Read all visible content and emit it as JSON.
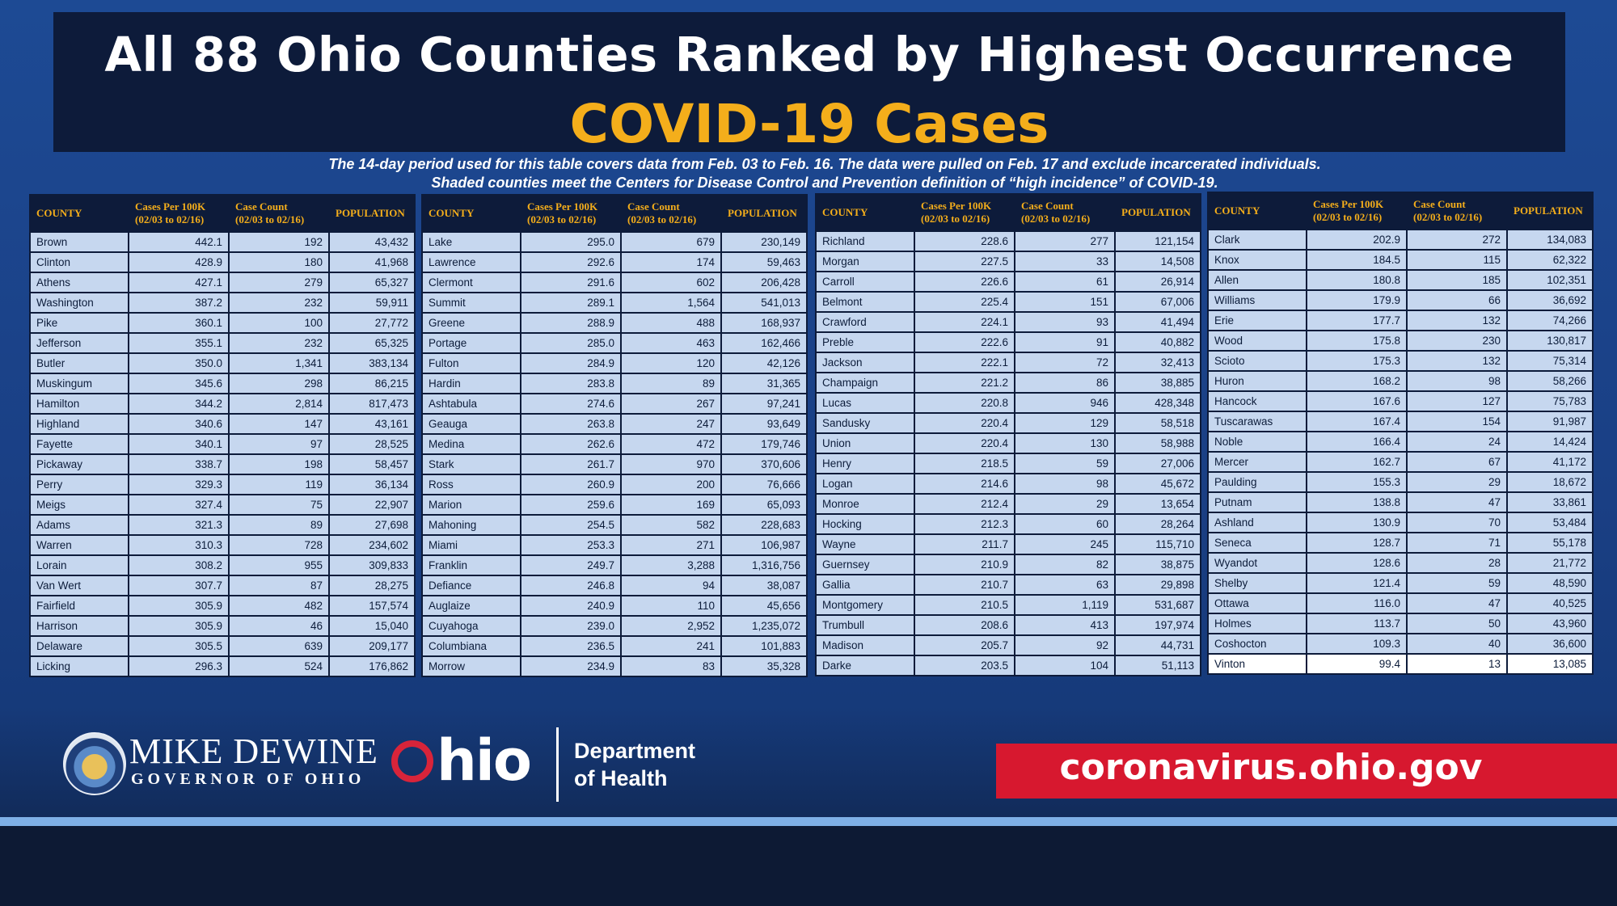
{
  "header": {
    "title": "All 88 Ohio Counties Ranked by Highest Occurrence",
    "subtitle": "COVID-19 Cases",
    "note_line1": "The 14-day period used for this table covers data from Feb. 03 to Feb. 16. The data were pulled on Feb. 17 and exclude incarcerated individuals.",
    "note_line2": "Shaded counties meet the Centers for Disease Control and Prevention definition of “high incidence” of COVID-19."
  },
  "columns": {
    "county": "COUNTY",
    "rate": "Cases Per 100K",
    "rate_sub": "(02/03 to 02/16)",
    "count": "Case Count",
    "count_sub": "(02/03 to 02/16)",
    "population": "POPULATION"
  },
  "tables": [
    [
      [
        "Brown",
        "442.1",
        "192",
        "43,432"
      ],
      [
        "Clinton",
        "428.9",
        "180",
        "41,968"
      ],
      [
        "Athens",
        "427.1",
        "279",
        "65,327"
      ],
      [
        "Washington",
        "387.2",
        "232",
        "59,911"
      ],
      [
        "Pike",
        "360.1",
        "100",
        "27,772"
      ],
      [
        "Jefferson",
        "355.1",
        "232",
        "65,325"
      ],
      [
        "Butler",
        "350.0",
        "1,341",
        "383,134"
      ],
      [
        "Muskingum",
        "345.6",
        "298",
        "86,215"
      ],
      [
        "Hamilton",
        "344.2",
        "2,814",
        "817,473"
      ],
      [
        "Highland",
        "340.6",
        "147",
        "43,161"
      ],
      [
        "Fayette",
        "340.1",
        "97",
        "28,525"
      ],
      [
        "Pickaway",
        "338.7",
        "198",
        "58,457"
      ],
      [
        "Perry",
        "329.3",
        "119",
        "36,134"
      ],
      [
        "Meigs",
        "327.4",
        "75",
        "22,907"
      ],
      [
        "Adams",
        "321.3",
        "89",
        "27,698"
      ],
      [
        "Warren",
        "310.3",
        "728",
        "234,602"
      ],
      [
        "Lorain",
        "308.2",
        "955",
        "309,833"
      ],
      [
        "Van Wert",
        "307.7",
        "87",
        "28,275"
      ],
      [
        "Fairfield",
        "305.9",
        "482",
        "157,574"
      ],
      [
        "Harrison",
        "305.9",
        "46",
        "15,040"
      ],
      [
        "Delaware",
        "305.5",
        "639",
        "209,177"
      ],
      [
        "Licking",
        "296.3",
        "524",
        "176,862"
      ]
    ],
    [
      [
        "Lake",
        "295.0",
        "679",
        "230,149"
      ],
      [
        "Lawrence",
        "292.6",
        "174",
        "59,463"
      ],
      [
        "Clermont",
        "291.6",
        "602",
        "206,428"
      ],
      [
        "Summit",
        "289.1",
        "1,564",
        "541,013"
      ],
      [
        "Greene",
        "288.9",
        "488",
        "168,937"
      ],
      [
        "Portage",
        "285.0",
        "463",
        "162,466"
      ],
      [
        "Fulton",
        "284.9",
        "120",
        "42,126"
      ],
      [
        "Hardin",
        "283.8",
        "89",
        "31,365"
      ],
      [
        "Ashtabula",
        "274.6",
        "267",
        "97,241"
      ],
      [
        "Geauga",
        "263.8",
        "247",
        "93,649"
      ],
      [
        "Medina",
        "262.6",
        "472",
        "179,746"
      ],
      [
        "Stark",
        "261.7",
        "970",
        "370,606"
      ],
      [
        "Ross",
        "260.9",
        "200",
        "76,666"
      ],
      [
        "Marion",
        "259.6",
        "169",
        "65,093"
      ],
      [
        "Mahoning",
        "254.5",
        "582",
        "228,683"
      ],
      [
        "Miami",
        "253.3",
        "271",
        "106,987"
      ],
      [
        "Franklin",
        "249.7",
        "3,288",
        "1,316,756"
      ],
      [
        "Defiance",
        "246.8",
        "94",
        "38,087"
      ],
      [
        "Auglaize",
        "240.9",
        "110",
        "45,656"
      ],
      [
        "Cuyahoga",
        "239.0",
        "2,952",
        "1,235,072"
      ],
      [
        "Columbiana",
        "236.5",
        "241",
        "101,883"
      ],
      [
        "Morrow",
        "234.9",
        "83",
        "35,328"
      ]
    ],
    [
      [
        "Richland",
        "228.6",
        "277",
        "121,154"
      ],
      [
        "Morgan",
        "227.5",
        "33",
        "14,508"
      ],
      [
        "Carroll",
        "226.6",
        "61",
        "26,914"
      ],
      [
        "Belmont",
        "225.4",
        "151",
        "67,006"
      ],
      [
        "Crawford",
        "224.1",
        "93",
        "41,494"
      ],
      [
        "Preble",
        "222.6",
        "91",
        "40,882"
      ],
      [
        "Jackson",
        "222.1",
        "72",
        "32,413"
      ],
      [
        "Champaign",
        "221.2",
        "86",
        "38,885"
      ],
      [
        "Lucas",
        "220.8",
        "946",
        "428,348"
      ],
      [
        "Sandusky",
        "220.4",
        "129",
        "58,518"
      ],
      [
        "Union",
        "220.4",
        "130",
        "58,988"
      ],
      [
        "Henry",
        "218.5",
        "59",
        "27,006"
      ],
      [
        "Logan",
        "214.6",
        "98",
        "45,672"
      ],
      [
        "Monroe",
        "212.4",
        "29",
        "13,654"
      ],
      [
        "Hocking",
        "212.3",
        "60",
        "28,264"
      ],
      [
        "Wayne",
        "211.7",
        "245",
        "115,710"
      ],
      [
        "Guernsey",
        "210.9",
        "82",
        "38,875"
      ],
      [
        "Gallia",
        "210.7",
        "63",
        "29,898"
      ],
      [
        "Montgomery",
        "210.5",
        "1,119",
        "531,687"
      ],
      [
        "Trumbull",
        "208.6",
        "413",
        "197,974"
      ],
      [
        "Madison",
        "205.7",
        "92",
        "44,731"
      ],
      [
        "Darke",
        "203.5",
        "104",
        "51,113"
      ]
    ],
    [
      [
        "Clark",
        "202.9",
        "272",
        "134,083"
      ],
      [
        "Knox",
        "184.5",
        "115",
        "62,322"
      ],
      [
        "Allen",
        "180.8",
        "185",
        "102,351"
      ],
      [
        "Williams",
        "179.9",
        "66",
        "36,692"
      ],
      [
        "Erie",
        "177.7",
        "132",
        "74,266"
      ],
      [
        "Wood",
        "175.8",
        "230",
        "130,817"
      ],
      [
        "Scioto",
        "175.3",
        "132",
        "75,314"
      ],
      [
        "Huron",
        "168.2",
        "98",
        "58,266"
      ],
      [
        "Hancock",
        "167.6",
        "127",
        "75,783"
      ],
      [
        "Tuscarawas",
        "167.4",
        "154",
        "91,987"
      ],
      [
        "Noble",
        "166.4",
        "24",
        "14,424"
      ],
      [
        "Mercer",
        "162.7",
        "67",
        "41,172"
      ],
      [
        "Paulding",
        "155.3",
        "29",
        "18,672"
      ],
      [
        "Putnam",
        "138.8",
        "47",
        "33,861"
      ],
      [
        "Ashland",
        "130.9",
        "70",
        "53,484"
      ],
      [
        "Seneca",
        "128.7",
        "71",
        "55,178"
      ],
      [
        "Wyandot",
        "128.6",
        "28",
        "21,772"
      ],
      [
        "Shelby",
        "121.4",
        "59",
        "48,590"
      ],
      [
        "Ottawa",
        "116.0",
        "47",
        "40,525"
      ],
      [
        "Holmes",
        "113.7",
        "50",
        "43,960"
      ],
      [
        "Coshocton",
        "109.3",
        "40",
        "36,600"
      ],
      [
        "Vinton",
        "99.4",
        "13",
        "13,085"
      ]
    ]
  ],
  "unshaded_counties": [
    "Vinton"
  ],
  "footer": {
    "governor_name": "MIKE DEWINE",
    "governor_title": "GOVERNOR OF OHIO",
    "seal_icon": "ohio-state-seal-icon",
    "ohio_logo": "Ohio",
    "dept_line1": "Department",
    "dept_line2": "of Health",
    "url": "coronavirus.ohio.gov"
  },
  "colors": {
    "background": "#1d4a94",
    "header_dark": "#0d1b3a",
    "accent_gold": "#f4ae1b",
    "shaded_row": "#c6d7ef",
    "unshaded_row": "#ffffff",
    "url_red": "#d7182f"
  }
}
